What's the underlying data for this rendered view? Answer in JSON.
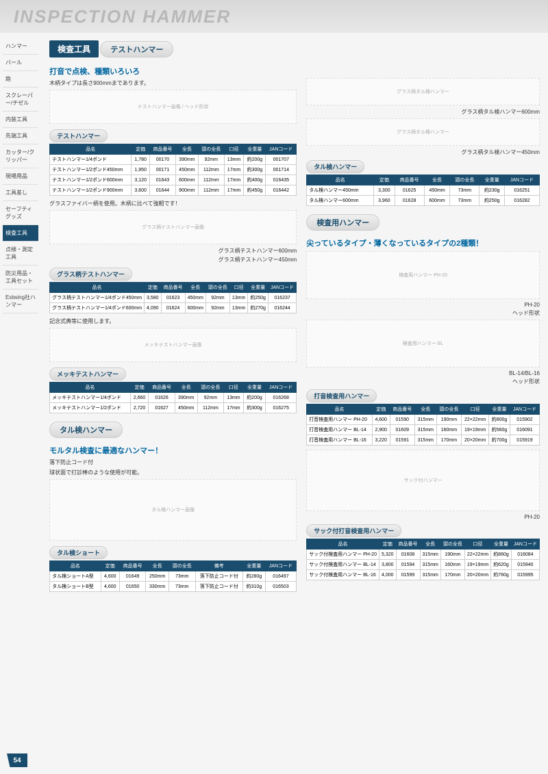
{
  "header": {
    "title": "INSPECTION HAMMER"
  },
  "sidebar": {
    "items": [
      {
        "label": "ハンマー"
      },
      {
        "label": "バール"
      },
      {
        "label": "鉋"
      },
      {
        "label": "スクレーパー/チゼル"
      },
      {
        "label": "内装工具"
      },
      {
        "label": "先端工具"
      },
      {
        "label": "カッター/クリッパー"
      },
      {
        "label": "現場用品"
      },
      {
        "label": "工具差し"
      },
      {
        "label": "セーフティグッズ"
      },
      {
        "label": "検査工具",
        "active": true
      },
      {
        "label": "点検・測定工具"
      },
      {
        "label": "防災用品・工具セット"
      },
      {
        "label": "Estwing社ハンマー"
      }
    ]
  },
  "page_title": "検査工具",
  "page_number": "54",
  "left": {
    "s1": {
      "tag": "テストハンマー",
      "blurb": "打音で点検、種類いろいろ",
      "sub": "木柄タイプは長さ900mmまであります。",
      "img": "テストハンマー画像 / ヘッド形状"
    },
    "t1": {
      "title": "テストハンマー",
      "cols": [
        "品名",
        "定価",
        "商品番号",
        "全長",
        "頭の全長",
        "口径",
        "全重量",
        "JANコード"
      ],
      "rows": [
        [
          "テストハンマー1/4ポンド",
          "1,780",
          "00170",
          "390mm",
          "92mm",
          "13mm",
          "約200g",
          "001707"
        ],
        [
          "テストハンマー1/2ポンド450mm",
          "1,950",
          "00171",
          "450mm",
          "112mm",
          "17mm",
          "約300g",
          "001714"
        ],
        [
          "テストハンマー1/2ポンド600mm",
          "3,120",
          "01643",
          "600mm",
          "112mm",
          "17mm",
          "約400g",
          "016435"
        ],
        [
          "テストハンマー1/2ポンド900mm",
          "3,600",
          "01644",
          "900mm",
          "112mm",
          "17mm",
          "約450g",
          "016442"
        ]
      ]
    },
    "s2": {
      "sub": "グラスファイバー柄を使用。木柄に比べて強靭です！",
      "cap1": "グラス柄テストハンマー600mm",
      "cap2": "グラス柄テストハンマー450mm"
    },
    "t2": {
      "title": "グラス柄テストハンマー",
      "cols": [
        "品名",
        "定価",
        "商品番号",
        "全長",
        "頭の全長",
        "口径",
        "全重量",
        "JANコード"
      ],
      "rows": [
        [
          "グラス柄テストハンマー1/4ポンド450mm",
          "3,580",
          "01623",
          "450mm",
          "92mm",
          "13mm",
          "約250g",
          "016237"
        ],
        [
          "グラス柄テストハンマー1/4ポンド600mm",
          "4,090",
          "01624",
          "600mm",
          "92mm",
          "13mm",
          "約270g",
          "016244"
        ]
      ]
    },
    "s3": {
      "sub": "記念式典等に使用します。"
    },
    "t3": {
      "title": "メッキテストハンマー",
      "cols": [
        "品名",
        "定価",
        "商品番号",
        "全長",
        "頭の全長",
        "口径",
        "全重量",
        "JANコード"
      ],
      "rows": [
        [
          "メッキテストハンマー1/4ポンド",
          "2,660",
          "01626",
          "390mm",
          "92mm",
          "13mm",
          "約200g",
          "016268"
        ],
        [
          "メッキテストハンマー1/2ポンド",
          "2,720",
          "01627",
          "450mm",
          "112mm",
          "17mm",
          "約300g",
          "016275"
        ]
      ]
    },
    "s4": {
      "tag": "タル検ハンマー",
      "blurb": "モルタル検査に最適なハンマー！",
      "sub1": "落下防止コード付",
      "sub2": "球状面で打診棒のような使用が可能。"
    },
    "t4": {
      "title": "タル検ショート",
      "cols": [
        "品名",
        "定価",
        "商品番号",
        "全長",
        "頭の全長",
        "備考",
        "全重量",
        "JANコード"
      ],
      "rows": [
        [
          "タル検ショートA型",
          "4,600",
          "01649",
          "250mm",
          "73mm",
          "落下防止コード付",
          "約280g",
          "016497"
        ],
        [
          "タル検ショートB型",
          "4,600",
          "01650",
          "330mm",
          "73mm",
          "落下防止コード付",
          "約310g",
          "016503"
        ]
      ]
    }
  },
  "right": {
    "cap1": "グラス柄タル検ハンマー600mm",
    "cap2": "グラス柄タル検ハンマー450mm",
    "t1": {
      "title": "タル検ハンマー",
      "cols": [
        "品名",
        "定価",
        "商品番号",
        "全長",
        "頭の全長",
        "全重量",
        "JANコード"
      ],
      "rows": [
        [
          "タル検ハンマー450mm",
          "3,300",
          "01625",
          "450mm",
          "73mm",
          "約230g",
          "016251"
        ],
        [
          "タル検ハンマー600mm",
          "3,960",
          "01628",
          "600mm",
          "73mm",
          "約250g",
          "016282"
        ]
      ]
    },
    "s1": {
      "tag": "検査用ハンマー",
      "blurb": "尖っているタイプ・薄くなっているタイプの2種類！",
      "cap1": "PH-20",
      "cap2": "BL-14/BL-16",
      "head": "ヘッド形状"
    },
    "t2": {
      "title": "打音検査用ハンマー",
      "cols": [
        "品名",
        "定価",
        "商品番号",
        "全長",
        "頭の全長",
        "口径",
        "全重量",
        "JANコード"
      ],
      "rows": [
        [
          "打音検査用ハンマー PH-20",
          "4,600",
          "01590",
          "315mm",
          "190mm",
          "22×22mm",
          "約800g",
          "015902"
        ],
        [
          "打音検査用ハンマー BL-14",
          "2,900",
          "01609",
          "315mm",
          "160mm",
          "19×19mm",
          "約560g",
          "016091"
        ],
        [
          "打音検査用ハンマー BL-16",
          "3,220",
          "01591",
          "315mm",
          "170mm",
          "20×20mm",
          "約700g",
          "015919"
        ]
      ]
    },
    "cap3": "PH-20",
    "t3": {
      "title": "サック付打音検査用ハンマー",
      "cols": [
        "品名",
        "定価",
        "商品番号",
        "全長",
        "頭の全長",
        "口径",
        "全重量",
        "JANコード"
      ],
      "rows": [
        [
          "サック付検査用ハンマー PH-20",
          "5,320",
          "01608",
          "315mm",
          "190mm",
          "22×22mm",
          "約860g",
          "016084"
        ],
        [
          "サック付検査用ハンマー BL-14",
          "3,800",
          "01594",
          "315mm",
          "160mm",
          "19×19mm",
          "約620g",
          "015940"
        ],
        [
          "サック付検査用ハンマー BL-16",
          "4,000",
          "01599",
          "315mm",
          "170mm",
          "20×20mm",
          "約760g",
          "015995"
        ]
      ]
    }
  }
}
